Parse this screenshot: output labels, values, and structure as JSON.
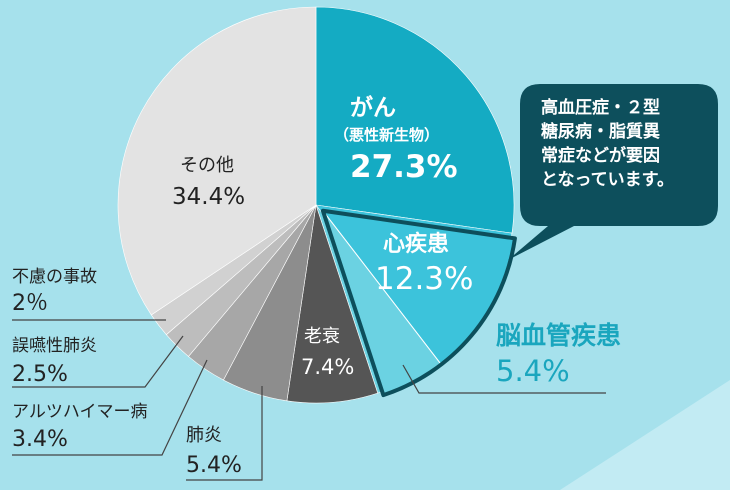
{
  "chart_data": {
    "type": "pie",
    "slices": [
      {
        "name": "がん",
        "sub": "（悪性新生物）",
        "value": 27.3,
        "label": "27.3%",
        "color": "#14abc3"
      },
      {
        "name": "心疾患",
        "value": 12.3,
        "label": "12.3%",
        "color": "#3cc3db"
      },
      {
        "name": "脳血管疾患",
        "value": 5.4,
        "label": "5.4%",
        "color": "#6bd2e2"
      },
      {
        "name": "老衰",
        "value": 7.4,
        "label": "7.4%",
        "color": "#555555"
      },
      {
        "name": "肺炎",
        "value": 5.4,
        "label": "5.4%",
        "color": "#8d8d8d"
      },
      {
        "name": "アルツハイマー病",
        "value": 3.4,
        "label": "3.4%",
        "color": "#a7a7a7"
      },
      {
        "name": "誤嚥性肺炎",
        "value": 2.5,
        "label": "2.5%",
        "color": "#bdbdbd"
      },
      {
        "name": "不慮の事故",
        "value": 2,
        "label": "2％",
        "color": "#d1d1d1"
      },
      {
        "name": "その他",
        "value": 34.4,
        "label": "34.4%",
        "color": "#e3e3e3"
      }
    ]
  },
  "callout": {
    "lines": [
      "高血圧症・２型",
      "糖尿病・脂質異",
      "常症などが要因",
      "となっています。"
    ],
    "color": "#0d4f5c"
  }
}
